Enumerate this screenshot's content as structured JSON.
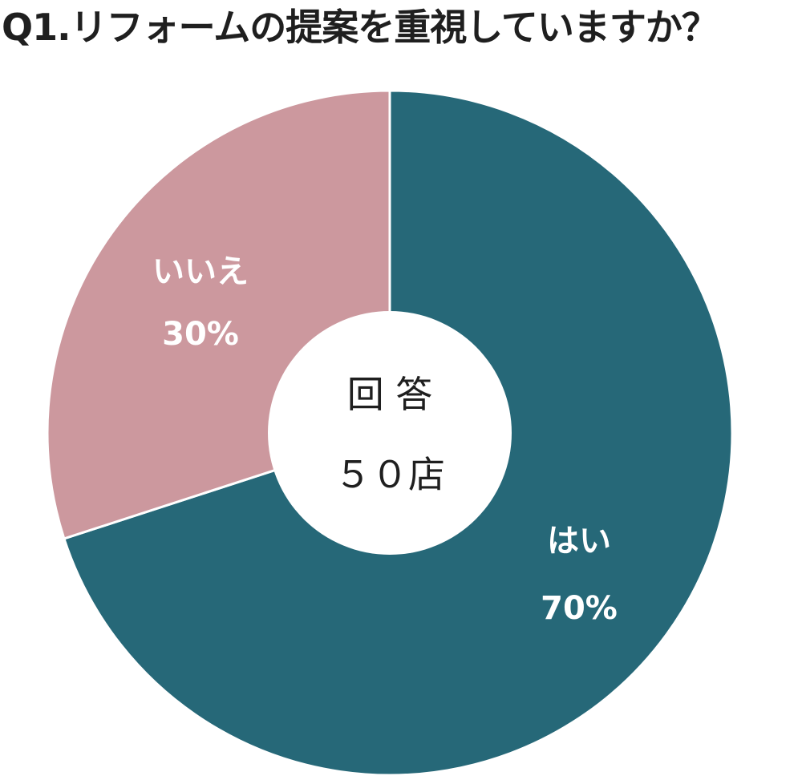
{
  "title": "Q1.リフォームの提案を重視していますか？",
  "colors": {
    "yes": "#266878",
    "no": "#cc989e",
    "divider": "#ffffff",
    "center": "#ffffff",
    "text": "#1f1f1f"
  },
  "chart_data": {
    "type": "pie",
    "title": "Q1.リフォームの提案を重視していますか？",
    "donut": true,
    "start": "12 o'clock",
    "direction": "clockwise",
    "slices": [
      {
        "name": "はい",
        "value": 70,
        "label": "70%",
        "color": "#266878"
      },
      {
        "name": "いいえ",
        "value": 30,
        "label": "30%",
        "color": "#cc989e"
      }
    ],
    "center_label": {
      "line1": "回 答",
      "line2": "５０店"
    }
  }
}
